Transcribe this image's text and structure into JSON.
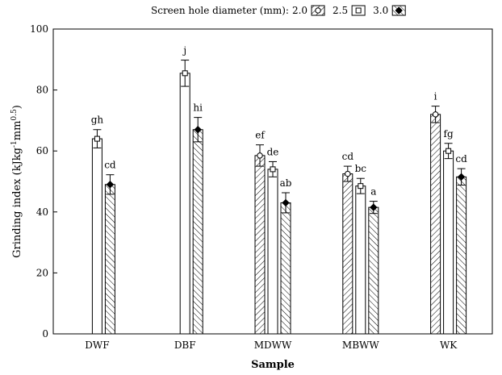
{
  "chart_data": {
    "type": "bar",
    "title": "",
    "xlabel": "Sample",
    "ylabel_main": "Grinding index (kJkg",
    "ylabel_sup1": "-1",
    "ylabel_mid": "mm",
    "ylabel_sup2": "0.5",
    "ylabel_end": ")",
    "ylim": [
      0,
      100
    ],
    "yticks": [
      0,
      20,
      40,
      60,
      80,
      100
    ],
    "legend": {
      "prefix": "Screen hole diameter (mm):",
      "placement": "top-center",
      "entries": [
        "2.0",
        "2.5",
        "3.0"
      ]
    },
    "categories": [
      "DWF",
      "DBF",
      "MDWW",
      "MBWW",
      "WK"
    ],
    "series": [
      {
        "name": "2.0",
        "pattern": "hatch-forward",
        "marker": "circle",
        "values": [
          null,
          null,
          58.5,
          52.5,
          72
        ],
        "errors": [
          null,
          null,
          3.5,
          2.5,
          2.7
        ],
        "letters": [
          "",
          "",
          "ef",
          "cd",
          "i"
        ]
      },
      {
        "name": "2.5",
        "pattern": "plain",
        "marker": "square",
        "values": [
          64,
          85.5,
          54,
          48.5,
          60
        ],
        "errors": [
          3.0,
          4.3,
          2.5,
          2.5,
          2.5
        ],
        "letters": [
          "gh",
          "j",
          "de",
          "bc",
          "fg"
        ]
      },
      {
        "name": "3.0",
        "pattern": "hatch-back",
        "marker": "diamond",
        "values": [
          49,
          67,
          43,
          41.5,
          51.5
        ],
        "errors": [
          3.2,
          4.0,
          3.3,
          2.0,
          2.7
        ],
        "letters": [
          "cd",
          "hi",
          "ab",
          "a",
          "cd"
        ]
      }
    ]
  }
}
